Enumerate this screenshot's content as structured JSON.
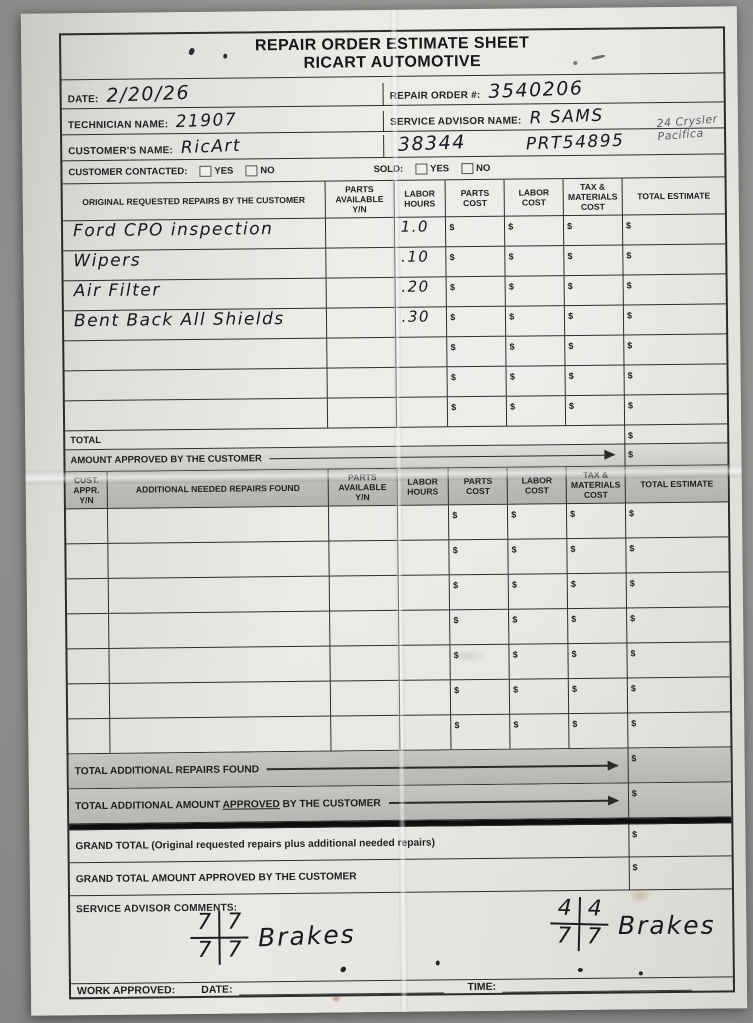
{
  "title": {
    "line1": "REPAIR ORDER ESTIMATE SHEET",
    "line2": "RICART AUTOMOTIVE"
  },
  "info": {
    "date_label": "DATE:",
    "date_value": "2/20/26",
    "repair_order_label": "REPAIR ORDER #:",
    "repair_order_value": "3540206",
    "technician_label": "TECHNICIAN NAME:",
    "technician_value": "21907",
    "advisor_label": "SERVICE ADVISOR NAME:",
    "advisor_value": "R SAMS",
    "customer_label": "CUSTOMER'S NAME:",
    "customer_value": "RicArt",
    "stock_number": "38344",
    "parts_ticket": "PRT54895",
    "pencil_note_line1": "24 Crysler",
    "pencil_note_line2": "Pacifica",
    "contacted_label": "CUSTOMER CONTACTED:",
    "sold_label": "SOLD:",
    "yes_label": "YES",
    "no_label": "NO"
  },
  "misc": {
    "currency_symbol": "$"
  },
  "original_table": {
    "headers": [
      "ORIGINAL REQUESTED REPAIRS BY THE CUSTOMER",
      "PARTS AVAILABLE Y/N",
      "LABOR HOURS",
      "PARTS COST",
      "LABOR COST",
      "TAX & MATERIALS COST",
      "TOTAL ESTIMATE"
    ],
    "rows": [
      {
        "repair": "Ford CPO inspection",
        "labor_hours": "1.0"
      },
      {
        "repair": "Wipers",
        "labor_hours": ".10"
      },
      {
        "repair": "Air Filter",
        "labor_hours": ".20"
      },
      {
        "repair": "Bent Back All Shields",
        "labor_hours": ".30"
      },
      {
        "repair": "",
        "labor_hours": ""
      },
      {
        "repair": "",
        "labor_hours": ""
      },
      {
        "repair": "",
        "labor_hours": ""
      }
    ],
    "total_label": "TOTAL",
    "approved_label": "AMOUNT APPROVED BY THE CUSTOMER"
  },
  "additional_table": {
    "headers": [
      "CUST. APPR. Y/N",
      "ADDITIONAL NEEDED REPAIRS FOUND",
      "PARTS AVAILABLE Y/N",
      "LABOR HOURS",
      "PARTS COST",
      "LABOR COST",
      "TAX & MATERIALS COST",
      "TOTAL ESTIMATE"
    ],
    "empty_row_count": 7,
    "total_found_label": "TOTAL ADDITIONAL REPAIRS FOUND",
    "total_approved_prefix": "TOTAL ADDITIONAL AMOUNT ",
    "total_approved_underlined": "APPROVED",
    "total_approved_suffix": " BY THE CUSTOMER"
  },
  "totals": {
    "grand_total_label": "GRAND TOTAL (Original requested repairs plus additional needed repairs)",
    "grand_total_approved_label": "GRAND TOTAL AMOUNT APPROVED BY THE CUSTOMER"
  },
  "comments": {
    "label": "SERVICE ADVISOR COMMENTS:",
    "left_measurement": {
      "top_left": "7",
      "top_right": "7",
      "bottom_left": "7",
      "bottom_right": "7",
      "word": "Brakes"
    },
    "right_measurement": {
      "top_left": "4",
      "top_right": "4",
      "bottom_left": "7",
      "bottom_right": "7",
      "word": "Brakes"
    }
  },
  "footer": {
    "work_approved_label": "WORK APPROVED:",
    "date_label": "DATE:",
    "time_label": "TIME:"
  }
}
